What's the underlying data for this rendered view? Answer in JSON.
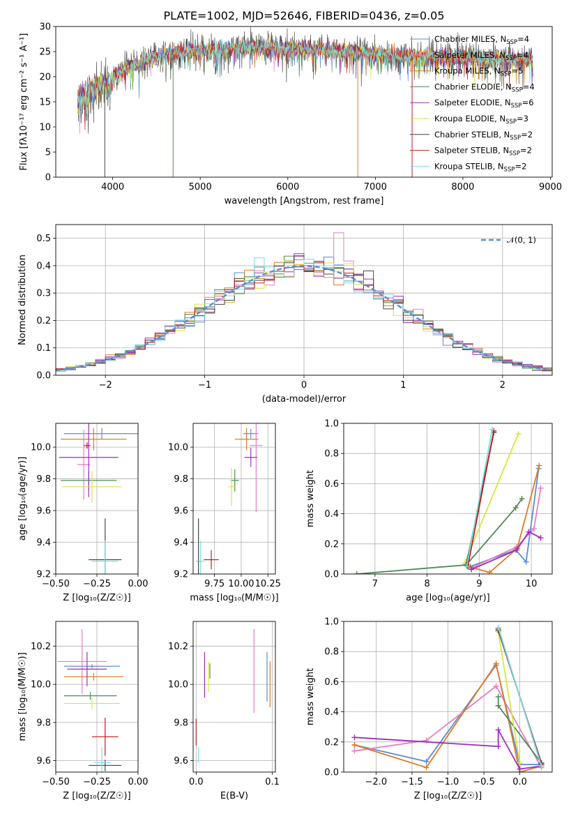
{
  "colors": [
    "#5b8bd6",
    "#e37fc3",
    "#e07a1f",
    "#4f8a55",
    "#9a2ebd",
    "#d9e542",
    "#454545",
    "#c01d1d",
    "#79dede"
  ],
  "chart_data": [
    {
      "id": "spectrum",
      "type": "line",
      "title": "PLATE=1002, MJD=52646, FIBERID=0436, z=0.05",
      "xlabel": "wavelength [Angstrom, rest frame]",
      "ylabel": "Flux [fλ10⁻¹⁷ erg cm⁻² s⁻¹ A⁻¹]",
      "xlim": [
        3350,
        9020
      ],
      "ylim": [
        0,
        30
      ],
      "xticks": [
        4000,
        5000,
        6000,
        7000,
        8000,
        9000
      ],
      "yticks": [
        0,
        5,
        10,
        15,
        20,
        25,
        30
      ],
      "grid": false,
      "legend_position": "top-right",
      "legend": [
        {
          "name": "Chabrier MILES, N",
          "sub": "SSP",
          "suffix": "=4"
        },
        {
          "name": "Salpeter MILES, N",
          "sub": "SSP",
          "suffix": "=4"
        },
        {
          "name": "Kroupa MILES, N",
          "sub": "SSP",
          "suffix": "=5"
        },
        {
          "name": "Chabrier ELODIE, N",
          "sub": "SSP",
          "suffix": "=4"
        },
        {
          "name": "Salpeter ELODIE, N",
          "sub": "SSP",
          "suffix": "=6"
        },
        {
          "name": "Kroupa ELODIE, N",
          "sub": "SSP",
          "suffix": "=3"
        },
        {
          "name": "Chabrier STELIB, N",
          "sub": "SSP",
          "suffix": "=2"
        },
        {
          "name": "Salpeter STELIB, N",
          "sub": "SSP",
          "suffix": "=2"
        },
        {
          "name": "Kroupa STELIB, N",
          "sub": "SSP",
          "suffix": "=2"
        }
      ],
      "continuum": [
        [
          3600,
          15
        ],
        [
          3700,
          16
        ],
        [
          3800,
          18
        ],
        [
          3950,
          19
        ],
        [
          4100,
          21
        ],
        [
          4300,
          23
        ],
        [
          4500,
          24
        ],
        [
          4800,
          25
        ],
        [
          5200,
          25.5
        ],
        [
          5600,
          26
        ],
        [
          6000,
          25.5
        ],
        [
          6500,
          25.3
        ],
        [
          7000,
          24.5
        ],
        [
          7500,
          24
        ],
        [
          8000,
          23.8
        ],
        [
          8500,
          23.5
        ],
        [
          8800,
          23.5
        ]
      ],
      "data_range": [
        3600,
        8800
      ],
      "absorption_lines": [
        [
          3933,
          17
        ],
        [
          3968,
          16
        ],
        [
          4101,
          21
        ],
        [
          4227,
          22
        ],
        [
          4300,
          21
        ],
        [
          4340,
          21
        ],
        [
          4861,
          22.5
        ],
        [
          5175,
          23
        ],
        [
          5270,
          24
        ],
        [
          5890,
          23
        ],
        [
          6563,
          25
        ]
      ],
      "model_range": [
        3600,
        8800
      ],
      "spikes": [
        {
          "x": 3910,
          "series": 6
        },
        {
          "x": 4690,
          "series": 3
        },
        {
          "x": 6800,
          "series": 2
        },
        {
          "x": 7420,
          "series": 7
        }
      ]
    },
    {
      "id": "residuals",
      "type": "histogram",
      "xlabel": "(data-model)/error",
      "ylabel": "Normed distribution",
      "xlim": [
        -2.5,
        2.5
      ],
      "ylim": [
        0,
        0.55
      ],
      "xticks": [
        -2,
        -1,
        0,
        1,
        2
      ],
      "yticks": [
        0.0,
        0.1,
        0.2,
        0.3,
        0.4,
        0.5
      ],
      "grid": true,
      "bin_width": 0.1,
      "legend_position": "top-right",
      "legend": [
        {
          "name": "𝒩(0, 1)",
          "style": "dashed",
          "color": "#5b8bd6"
        }
      ]
    },
    {
      "id": "age-vs-Z",
      "type": "errorbar",
      "xlabel": "Z [log₁₀(Z/Z☉)]",
      "ylabel": "age  [log₁₀(age/yr)]",
      "xlim": [
        -0.5,
        0.0
      ],
      "ylim": [
        9.2,
        10.15
      ],
      "xticks": [
        -0.5,
        -0.25,
        0.0
      ],
      "yticks": [
        9.2,
        9.4,
        9.6,
        9.8,
        10.0
      ],
      "grid": true,
      "points": [
        {
          "x": -0.22,
          "y": 10.085,
          "xerr": 0.23,
          "yerr": 0.035
        },
        {
          "x": -0.33,
          "y": 9.89,
          "xerr": 0.04,
          "yerr": 0.22
        },
        {
          "x": -0.27,
          "y": 10.05,
          "xerr": 0.2,
          "yerr": 0.07
        },
        {
          "x": -0.3,
          "y": 9.79,
          "xerr": 0.17,
          "yerr": 0.06
        },
        {
          "x": -0.3,
          "y": 9.935,
          "xerr": 0.18,
          "yerr": 0.25
        },
        {
          "x": -0.28,
          "y": 9.75,
          "xerr": 0.18,
          "yerr": 0.1
        },
        {
          "x": -0.2,
          "y": 9.29,
          "xerr": 0.1,
          "yerr": 0.26
        },
        {
          "x": -0.31,
          "y": 10.01,
          "xerr": 0.02,
          "yerr": 0.02
        },
        {
          "x": -0.2,
          "y": 9.28,
          "xerr": 0.08,
          "yerr": 0.13
        }
      ]
    },
    {
      "id": "age-vs-mass",
      "type": "errorbar",
      "xlabel": "mass [log₁₀(M/M☉)]",
      "ylabel": "",
      "xlim": [
        9.55,
        10.32
      ],
      "ylim": [
        9.2,
        10.15
      ],
      "xticks": [
        9.75,
        10.0,
        10.25
      ],
      "xticklabels": [
        "9.75",
        "10.00",
        "10.25"
      ],
      "yticks": [
        9.2,
        9.4,
        9.6,
        9.8,
        10.0
      ],
      "grid": true,
      "points": [
        {
          "x": 10.09,
          "y": 10.085,
          "xerr": 0.07,
          "yerr": 0.03
        },
        {
          "x": 10.14,
          "y": 10.01,
          "xerr": 0.06,
          "yerr": 0.42
        },
        {
          "x": 10.05,
          "y": 10.05,
          "xerr": 0.11,
          "yerr": 0.07
        },
        {
          "x": 9.94,
          "y": 9.79,
          "xerr": 0.04,
          "yerr": 0.07
        },
        {
          "x": 10.09,
          "y": 9.935,
          "xerr": 0.06,
          "yerr": 0.06
        },
        {
          "x": 9.91,
          "y": 9.75,
          "xerr": 0.03,
          "yerr": 0.12
        },
        {
          "x": 9.6,
          "y": 9.28,
          "xerr": 0.02,
          "yerr": 0.27
        },
        {
          "x": 9.72,
          "y": 9.29,
          "xerr": 0.07,
          "yerr": 0.06
        },
        {
          "x": 9.62,
          "y": 9.28,
          "xerr": 0.04,
          "yerr": 0.13
        }
      ]
    },
    {
      "id": "weight-vs-age",
      "type": "line",
      "xlabel": "age  [log₁₀(age/yr)]",
      "ylabel": "mass weight",
      "xlim": [
        6.4,
        10.4
      ],
      "ylim": [
        0.0,
        1.0
      ],
      "xticks": [
        7,
        8,
        9,
        10
      ],
      "yticks": [
        0.0,
        0.2,
        0.4,
        0.6,
        0.8,
        1.0
      ],
      "grid": true,
      "series": [
        {
          "x": [
            8.83,
            9.7,
            9.9,
            10.14
          ],
          "y": [
            0.05,
            0.16,
            0.08,
            0.7
          ]
        },
        {
          "x": [
            8.85,
            9.72,
            10.05,
            10.18
          ],
          "y": [
            0.04,
            0.18,
            0.3,
            0.57
          ]
        },
        {
          "x": [
            8.8,
            9.2,
            9.73,
            10.15
          ],
          "y": [
            0.05,
            0.01,
            0.17,
            0.72
          ]
        },
        {
          "x": [
            6.65,
            8.75,
            9.7,
            9.82
          ],
          "y": [
            0.0,
            0.06,
            0.44,
            0.5
          ]
        },
        {
          "x": [
            8.85,
            9.72,
            9.95,
            10.18
          ],
          "y": [
            0.03,
            0.16,
            0.28,
            0.24
          ]
        },
        {
          "x": [
            8.72,
            9.75
          ],
          "y": [
            0.07,
            0.93
          ]
        },
        {
          "x": [
            8.75,
            9.28
          ],
          "y": [
            0.06,
            0.94
          ]
        },
        {
          "x": [
            8.78,
            9.28
          ],
          "y": [
            0.05,
            0.95
          ]
        },
        {
          "x": [
            8.76,
            9.25
          ],
          "y": [
            0.05,
            0.96
          ]
        }
      ]
    },
    {
      "id": "mass-vs-Z",
      "type": "errorbar",
      "xlabel": "Z [log₁₀(Z/Z☉)]",
      "ylabel": "mass [log₁₀(M/M☉)]",
      "xlim": [
        -0.5,
        0.0
      ],
      "ylim": [
        9.54,
        10.33
      ],
      "xticks": [
        -0.5,
        -0.25,
        0.0
      ],
      "yticks": [
        9.6,
        9.8,
        10.0,
        10.2
      ],
      "grid": true,
      "points": [
        {
          "x": -0.28,
          "y": 10.095,
          "xerr": 0.17,
          "yerr": 0.01
        },
        {
          "x": -0.34,
          "y": 10.12,
          "xerr": 0.15,
          "yerr": 0.17
        },
        {
          "x": -0.27,
          "y": 10.04,
          "xerr": 0.18,
          "yerr": 0.02
        },
        {
          "x": -0.29,
          "y": 9.94,
          "xerr": 0.16,
          "yerr": 0.02
        },
        {
          "x": -0.31,
          "y": 10.08,
          "xerr": 0.12,
          "yerr": 0.09
        },
        {
          "x": -0.28,
          "y": 9.9,
          "xerr": 0.17,
          "yerr": 0.03
        },
        {
          "x": -0.2,
          "y": 9.575,
          "xerr": 0.1,
          "yerr": 0.03
        },
        {
          "x": -0.2,
          "y": 9.725,
          "xerr": 0.08,
          "yerr": 0.1
        },
        {
          "x": -0.22,
          "y": 9.59,
          "xerr": 0.05,
          "yerr": 0.08
        }
      ]
    },
    {
      "id": "mass-vs-ebv",
      "type": "errorbar",
      "xlabel": "E(B-V)",
      "ylabel": "",
      "xlim": [
        -0.004,
        0.104
      ],
      "ylim": [
        9.54,
        10.33
      ],
      "xticks": [
        0.0,
        0.1
      ],
      "yticks": [
        9.6,
        9.8,
        10.0,
        10.2
      ],
      "grid": true,
      "points": [
        {
          "x": 0.093,
          "y": 10.04,
          "xerr": 0,
          "yerr": 0.13
        },
        {
          "x": 0.076,
          "y": 10.07,
          "xerr": 0,
          "yerr": 0.22
        },
        {
          "x": 0.097,
          "y": 10.0,
          "xerr": 0,
          "yerr": 0.12
        },
        {
          "x": 0.018,
          "y": 10.07,
          "xerr": 0,
          "yerr": 0.04
        },
        {
          "x": 0.011,
          "y": 10.05,
          "xerr": 0,
          "yerr": 0.12
        },
        {
          "x": 0.016,
          "y": 10.04,
          "xerr": 0,
          "yerr": 0.08
        },
        {
          "x": 0.002,
          "y": 9.56,
          "xerr": 0,
          "yerr": 0.0
        },
        {
          "x": 0.0,
          "y": 9.75,
          "xerr": 0,
          "yerr": 0.07
        },
        {
          "x": 0.003,
          "y": 9.63,
          "xerr": 0,
          "yerr": 0.04
        }
      ]
    },
    {
      "id": "weight-vs-Z",
      "type": "line",
      "xlabel": "Z [log₁₀(Z/Z☉)]",
      "ylabel": "mass weight",
      "xlim": [
        -2.45,
        0.45
      ],
      "ylim": [
        0.0,
        1.0
      ],
      "xticks": [
        -2.0,
        -1.5,
        -1.0,
        -0.5,
        0.0
      ],
      "yticks": [
        0.0,
        0.2,
        0.4,
        0.6,
        0.8,
        1.0
      ],
      "grid": true,
      "series": [
        {
          "x": [
            -2.3,
            -1.3,
            -0.33,
            0.0,
            0.3
          ],
          "y": [
            0.18,
            0.07,
            0.71,
            0.05,
            0.05
          ]
        },
        {
          "x": [
            -2.3,
            -1.3,
            -0.33,
            0.3
          ],
          "y": [
            0.14,
            0.21,
            0.57,
            0.03
          ]
        },
        {
          "x": [
            -2.3,
            -1.3,
            -0.33,
            0.0,
            0.3
          ],
          "y": [
            0.18,
            0.03,
            0.72,
            0.0,
            0.04
          ]
        },
        {
          "x": [
            -0.3,
            -0.3,
            -0.3,
            0.3
          ],
          "y": [
            0.5,
            0.44,
            0.44,
            0.06
          ]
        },
        {
          "x": [
            -2.3,
            -0.3,
            -0.3,
            0.0,
            0.3
          ],
          "y": [
            0.23,
            0.17,
            0.28,
            0.02,
            0.04
          ]
        },
        {
          "x": [
            -0.3,
            0.0
          ],
          "y": [
            0.93,
            0.06
          ]
        },
        {
          "x": [
            -0.3,
            0.3
          ],
          "y": [
            0.94,
            0.06
          ]
        },
        {
          "x": [
            -0.3,
            0.3
          ],
          "y": [
            0.95,
            0.05
          ]
        },
        {
          "x": [
            -0.3,
            0.3
          ],
          "y": [
            0.96,
            0.04
          ]
        }
      ]
    }
  ]
}
